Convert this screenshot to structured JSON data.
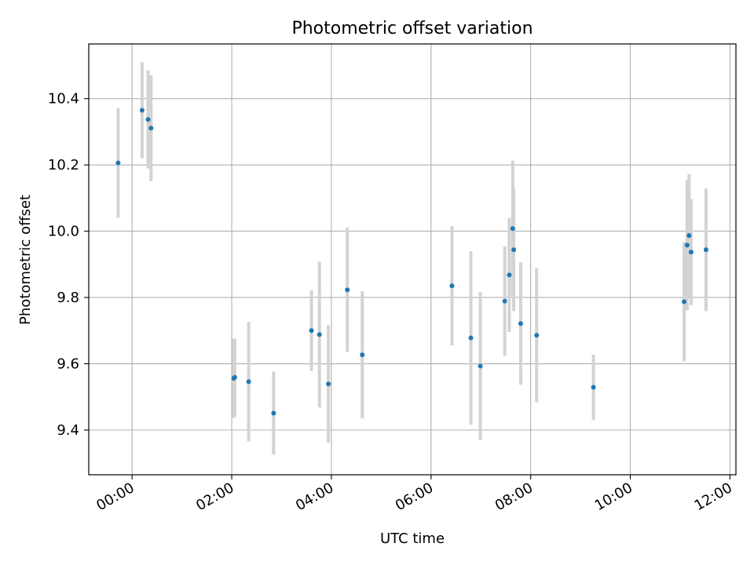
{
  "chart_data": {
    "type": "scatter",
    "title": "Photometric offset variation",
    "xlabel": "UTC time",
    "ylabel": "Photometric offset",
    "x_unit": "hours since 00:00 UTC",
    "xlim": [
      -0.87,
      12.12
    ],
    "ylim": [
      9.265,
      10.565
    ],
    "grid": true,
    "x_ticks": [
      0,
      2,
      4,
      6,
      8,
      10,
      12
    ],
    "x_tick_labels": [
      "00:00",
      "02:00",
      "04:00",
      "06:00",
      "08:00",
      "10:00",
      "12:00"
    ],
    "y_ticks": [
      9.4,
      9.6,
      9.8,
      10.0,
      10.2,
      10.4
    ],
    "y_tick_labels": [
      "9.4",
      "9.6",
      "9.8",
      "10.0",
      "10.2",
      "10.4"
    ],
    "colors": {
      "point": "#1f77b4",
      "errorbar": "#d3d3d3",
      "grid": "#b0b0b0",
      "axis": "#000000"
    },
    "points": [
      {
        "x": -0.28,
        "y": 10.206,
        "err": 0.165
      },
      {
        "x": 0.2,
        "y": 10.365,
        "err": 0.145
      },
      {
        "x": 0.32,
        "y": 10.337,
        "err": 0.148
      },
      {
        "x": 0.38,
        "y": 10.311,
        "err": 0.16
      },
      {
        "x": 2.04,
        "y": 9.556,
        "err": 0.12
      },
      {
        "x": 2.06,
        "y": 9.559,
        "err": 0.117
      },
      {
        "x": 2.34,
        "y": 9.546,
        "err": 0.18
      },
      {
        "x": 2.84,
        "y": 9.451,
        "err": 0.125
      },
      {
        "x": 3.6,
        "y": 9.7,
        "err": 0.122
      },
      {
        "x": 3.76,
        "y": 9.688,
        "err": 0.22
      },
      {
        "x": 3.94,
        "y": 9.539,
        "err": 0.178
      },
      {
        "x": 4.32,
        "y": 9.823,
        "err": 0.188
      },
      {
        "x": 4.62,
        "y": 9.627,
        "err": 0.192
      },
      {
        "x": 6.42,
        "y": 9.835,
        "err": 0.18
      },
      {
        "x": 6.8,
        "y": 9.678,
        "err": 0.262
      },
      {
        "x": 6.99,
        "y": 9.593,
        "err": 0.223
      },
      {
        "x": 7.48,
        "y": 9.789,
        "err": 0.165
      },
      {
        "x": 7.57,
        "y": 9.868,
        "err": 0.172
      },
      {
        "x": 7.64,
        "y": 10.008,
        "err": 0.205
      },
      {
        "x": 7.66,
        "y": 9.944,
        "err": 0.185
      },
      {
        "x": 7.8,
        "y": 9.721,
        "err": 0.185
      },
      {
        "x": 8.12,
        "y": 9.686,
        "err": 0.202
      },
      {
        "x": 9.26,
        "y": 9.529,
        "err": 0.098
      },
      {
        "x": 11.08,
        "y": 9.787,
        "err": 0.18
      },
      {
        "x": 11.14,
        "y": 9.958,
        "err": 0.197
      },
      {
        "x": 11.18,
        "y": 9.987,
        "err": 0.185
      },
      {
        "x": 11.22,
        "y": 9.937,
        "err": 0.16
      },
      {
        "x": 11.52,
        "y": 9.944,
        "err": 0.185
      }
    ]
  }
}
